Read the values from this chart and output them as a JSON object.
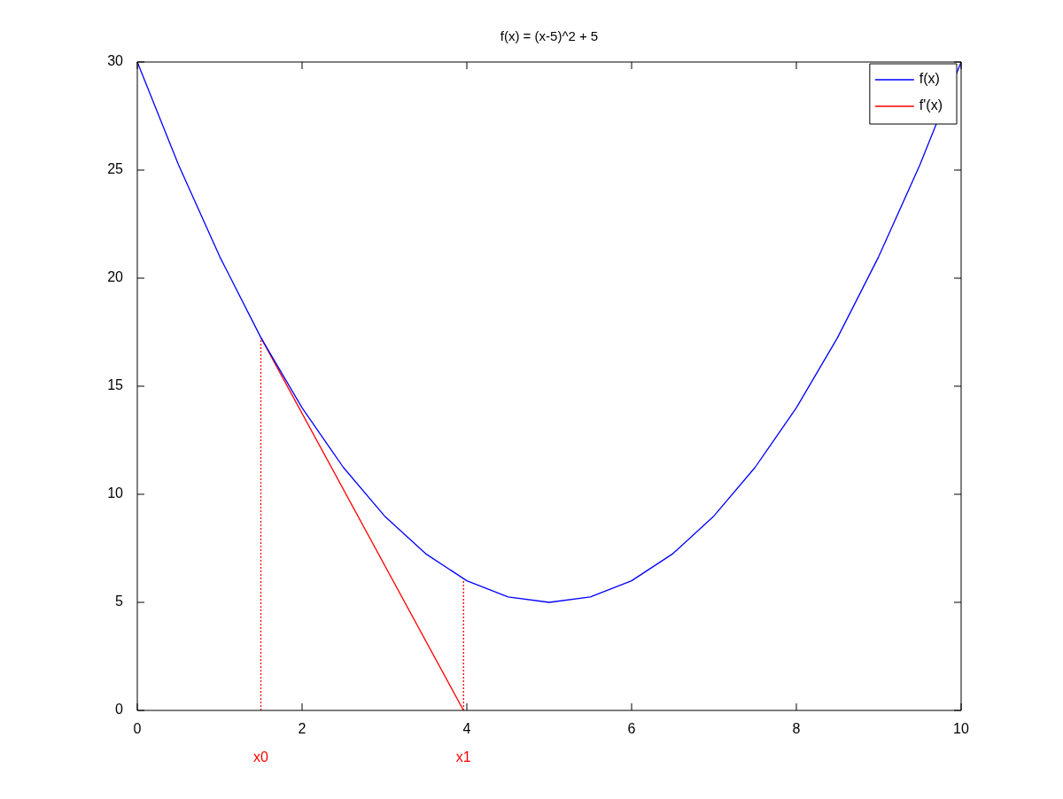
{
  "chart_data": {
    "type": "line",
    "title": "f(x) = (x-5)^2 + 5",
    "series": [
      {
        "name": "f(x)",
        "color": "#0000ff",
        "x": [
          0,
          0.5,
          1,
          1.5,
          2,
          2.5,
          3,
          3.5,
          4,
          4.5,
          5,
          5.5,
          6,
          6.5,
          7,
          7.5,
          8,
          8.5,
          9,
          9.5,
          10
        ],
        "values": [
          30,
          25.25,
          21,
          17.25,
          14,
          11.25,
          9,
          7.25,
          6,
          5.25,
          5,
          5.25,
          6,
          7.25,
          9,
          11.25,
          14,
          17.25,
          21,
          25.25,
          30
        ]
      },
      {
        "name": "f'(x)",
        "color": "#ff0000",
        "x": [
          1.5,
          3.96
        ],
        "values": [
          17.25,
          0
        ]
      },
      {
        "color": "#ff0000",
        "line_style": "dotted",
        "x": [
          1.5,
          1.5
        ],
        "values": [
          0,
          17.25
        ]
      },
      {
        "color": "#ff0000",
        "line_style": "dotted",
        "x": [
          3.96,
          3.96
        ],
        "values": [
          0,
          6.08
        ]
      }
    ],
    "annotations": [
      {
        "text": "x0",
        "x": 1.5,
        "y": 0
      },
      {
        "text": "x1",
        "x": 3.96,
        "y": 0
      }
    ],
    "xlim": [
      0,
      10
    ],
    "xticks": [
      0,
      2,
      4,
      6,
      8,
      10
    ],
    "ylim": [
      0,
      30
    ],
    "yticks": [
      0,
      5,
      10,
      15,
      20,
      25,
      30
    ],
    "marker": "none",
    "line_style": "solid",
    "legend": "top right"
  }
}
